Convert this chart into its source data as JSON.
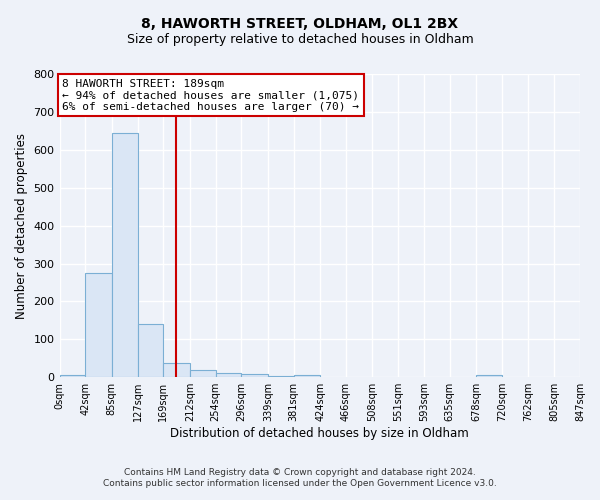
{
  "title1": "8, HAWORTH STREET, OLDHAM, OL1 2BX",
  "title2": "Size of property relative to detached houses in Oldham",
  "xlabel": "Distribution of detached houses by size in Oldham",
  "ylabel": "Number of detached properties",
  "bin_labels": [
    "0sqm",
    "42sqm",
    "85sqm",
    "127sqm",
    "169sqm",
    "212sqm",
    "254sqm",
    "296sqm",
    "339sqm",
    "381sqm",
    "424sqm",
    "466sqm",
    "508sqm",
    "551sqm",
    "593sqm",
    "635sqm",
    "678sqm",
    "720sqm",
    "762sqm",
    "805sqm",
    "847sqm"
  ],
  "bin_edges": [
    0,
    42,
    85,
    127,
    169,
    212,
    254,
    296,
    339,
    381,
    424,
    466,
    508,
    551,
    593,
    635,
    678,
    720,
    762,
    805,
    847
  ],
  "bar_heights": [
    7,
    275,
    645,
    140,
    38,
    18,
    10,
    8,
    4,
    5,
    0,
    0,
    0,
    0,
    0,
    0,
    5,
    0,
    0,
    0,
    0
  ],
  "bar_color": "#dae6f5",
  "bar_edge_color": "#7bafd4",
  "property_line_x": 189,
  "property_line_color": "#cc0000",
  "annotation_line1": "8 HAWORTH STREET: 189sqm",
  "annotation_line2": "← 94% of detached houses are smaller (1,075)",
  "annotation_line3": "6% of semi-detached houses are larger (70) →",
  "annotation_box_color": "#ffffff",
  "annotation_box_edge_color": "#cc0000",
  "ylim": [
    0,
    800
  ],
  "yticks": [
    0,
    100,
    200,
    300,
    400,
    500,
    600,
    700,
    800
  ],
  "footer_text": "Contains HM Land Registry data © Crown copyright and database right 2024.\nContains public sector information licensed under the Open Government Licence v3.0.",
  "background_color": "#eef2f9",
  "grid_color": "#ffffff"
}
